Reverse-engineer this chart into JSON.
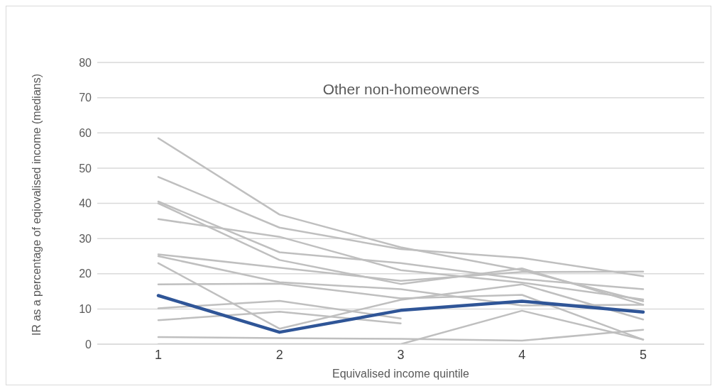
{
  "chart_data": {
    "type": "line",
    "title": "Other non-homeowners",
    "xlabel": "Equivalised income quintile",
    "ylabel": "IR as a percentage of eqiovalised income (medians)",
    "categories": [
      "1",
      "2",
      "3",
      "4",
      "5"
    ],
    "ylim": [
      0,
      80
    ],
    "yticks": [
      0,
      10,
      20,
      30,
      40,
      50,
      60,
      70,
      80
    ],
    "grid": "y",
    "marker": "none",
    "line_style": "solid",
    "series": [
      {
        "color": "#bfbfbf",
        "values": [
          58.5,
          36.8,
          27.5,
          21.0,
          12.2
        ]
      },
      {
        "color": "#bfbfbf",
        "values": [
          47.5,
          33.1,
          27.0,
          24.5,
          19.3
        ]
      },
      {
        "color": "#bfbfbf",
        "values": [
          40.5,
          26.1,
          23.0,
          18.5,
          15.6
        ]
      },
      {
        "color": "#bfbfbf",
        "values": [
          40.0,
          23.9,
          17.1,
          21.5,
          11.2
        ]
      },
      {
        "color": "#bfbfbf",
        "values": [
          35.5,
          30.5,
          21.0,
          17.5,
          12.7
        ]
      },
      {
        "color": "#bfbfbf",
        "values": [
          25.5,
          21.7,
          18.0,
          20.5,
          20.6
        ]
      },
      {
        "color": "#bfbfbf",
        "values": [
          25.0,
          17.6,
          15.6,
          11.0,
          11.2
        ]
      },
      {
        "color": "#bfbfbf",
        "values": [
          23.0,
          4.4,
          12.6,
          17.0,
          7.0
        ]
      },
      {
        "color": "#bfbfbf",
        "values": [
          17.0,
          17.2,
          13.0,
          14.0,
          1.3
        ]
      },
      {
        "color": "#bfbfbf",
        "values": [
          10.2,
          12.3,
          7.3,
          null,
          null
        ]
      },
      {
        "color": "#bfbfbf",
        "values": [
          6.8,
          9.2,
          5.9,
          null,
          null
        ]
      },
      {
        "color": "#bfbfbf",
        "values": [
          2.0,
          1.7,
          1.5,
          1.0,
          4.1
        ]
      },
      {
        "color": "#bfbfbf",
        "values": [
          0,
          0,
          0,
          9.5,
          1.3
        ]
      },
      {
        "color": "#2f5597",
        "values": [
          13.8,
          3.4,
          9.6,
          12.2,
          9.1
        ]
      }
    ]
  }
}
